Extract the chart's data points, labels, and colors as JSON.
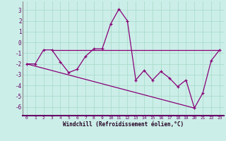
{
  "xlabel": "Windchill (Refroidissement éolien,°C)",
  "background_color": "#cceee8",
  "grid_color": "#aaddcc",
  "line_color": "#880077",
  "xlim": [
    -0.5,
    23.5
  ],
  "ylim": [
    -6.8,
    3.8
  ],
  "yticks": [
    -6,
    -5,
    -4,
    -3,
    -2,
    -1,
    0,
    1,
    2,
    3
  ],
  "xticks": [
    0,
    1,
    2,
    3,
    4,
    5,
    6,
    7,
    8,
    9,
    10,
    11,
    12,
    13,
    14,
    15,
    16,
    17,
    18,
    19,
    20,
    21,
    22,
    23
  ],
  "series_main": [
    [
      0,
      -2.0
    ],
    [
      1,
      -2.0
    ],
    [
      2,
      -0.7
    ],
    [
      3,
      -0.7
    ],
    [
      4,
      -1.8
    ],
    [
      5,
      -2.8
    ],
    [
      6,
      -2.5
    ],
    [
      7,
      -1.3
    ],
    [
      8,
      -0.6
    ],
    [
      9,
      -0.6
    ],
    [
      10,
      1.7
    ],
    [
      11,
      3.1
    ],
    [
      12,
      2.0
    ],
    [
      13,
      -3.5
    ],
    [
      14,
      -2.6
    ],
    [
      15,
      -3.5
    ],
    [
      16,
      -2.7
    ],
    [
      17,
      -3.3
    ],
    [
      18,
      -4.1
    ],
    [
      19,
      -3.5
    ],
    [
      20,
      -6.1
    ],
    [
      21,
      -4.7
    ],
    [
      22,
      -1.7
    ],
    [
      23,
      -0.7
    ]
  ],
  "series_horiz": [
    [
      3,
      -0.7
    ],
    [
      23,
      -0.7
    ]
  ],
  "series_diag": [
    [
      0,
      -2.0
    ],
    [
      20,
      -6.1
    ]
  ]
}
